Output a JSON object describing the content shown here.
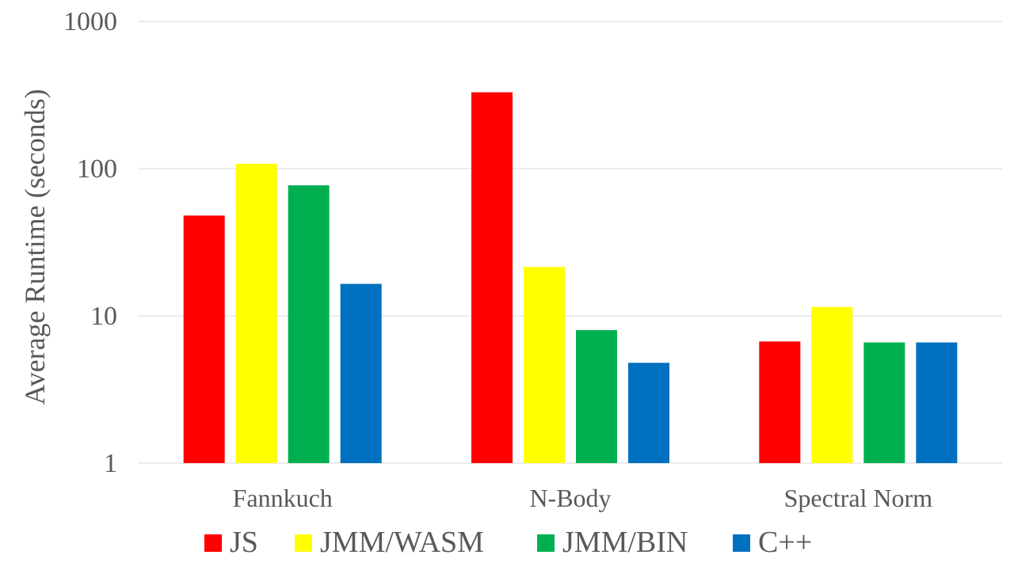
{
  "chart_data": {
    "type": "bar",
    "title": "",
    "xlabel": "",
    "ylabel": "Average Runtime (seconds)",
    "yscale": "log",
    "ylim": [
      1,
      1000
    ],
    "yticks": [
      "1",
      "10",
      "100",
      "1000"
    ],
    "grid": true,
    "legend_position": "bottom",
    "categories": [
      "Fannkuch",
      "N-Body",
      "Spectral Norm"
    ],
    "series": [
      {
        "name": "JS",
        "color": "#ff0000",
        "values": [
          48,
          330,
          6.7
        ]
      },
      {
        "name": "JMM/WASM",
        "color": "#ffff00",
        "values": [
          108,
          21.5,
          11.5
        ]
      },
      {
        "name": "JMM/BIN",
        "color": "#00b050",
        "values": [
          77,
          8.0,
          6.6
        ]
      },
      {
        "name": "C++",
        "color": "#0070c0",
        "values": [
          16.5,
          4.8,
          6.6
        ]
      }
    ]
  }
}
